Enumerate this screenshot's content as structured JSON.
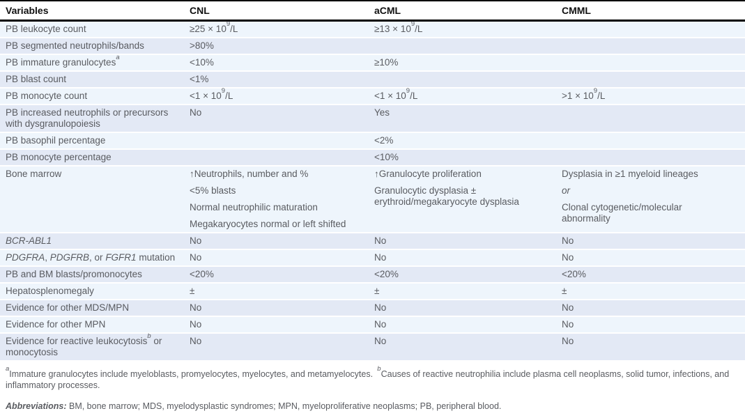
{
  "colors": {
    "row_light": "#eef5fc",
    "row_dark": "#e3e9f5",
    "rule": "#000000",
    "text": "#595b60",
    "header_text": "#111111"
  },
  "table": {
    "header": [
      {
        "label": "Variables"
      },
      {
        "label": "CNL"
      },
      {
        "label": "aCML"
      },
      {
        "label": "CMML"
      }
    ],
    "rows": [
      {
        "cells": [
          [
            "PB leukocyte count"
          ],
          [
            [
              {
                "t": "≥25 × 10"
              },
              {
                "t": "9",
                "sup": true
              },
              {
                "t": "/L"
              }
            ]
          ],
          [
            [
              {
                "t": "≥13 × 10"
              },
              {
                "t": "9",
                "sup": true
              },
              {
                "t": "/L"
              }
            ]
          ],
          []
        ]
      },
      {
        "cells": [
          [
            "PB segmented neutrophils/bands"
          ],
          [
            ">80%"
          ],
          [],
          []
        ]
      },
      {
        "cells": [
          [
            [
              {
                "t": "PB immature granulocytes"
              },
              {
                "t": "a",
                "sup": true,
                "i": true
              }
            ]
          ],
          [
            "<10%"
          ],
          [
            "≥10%"
          ],
          []
        ]
      },
      {
        "cells": [
          [
            "PB blast count"
          ],
          [
            "<1%"
          ],
          [],
          []
        ]
      },
      {
        "cells": [
          [
            "PB monocyte count"
          ],
          [
            [
              {
                "t": "<1 × 10"
              },
              {
                "t": "9",
                "sup": true
              },
              {
                "t": "/L"
              }
            ]
          ],
          [
            [
              {
                "t": "<1 × 10"
              },
              {
                "t": "9",
                "sup": true
              },
              {
                "t": "/L"
              }
            ]
          ],
          [
            [
              {
                "t": ">1 × 10"
              },
              {
                "t": "9",
                "sup": true
              },
              {
                "t": "/L"
              }
            ]
          ]
        ]
      },
      {
        "cells": [
          [
            "PB increased neutrophils or precursors with dysgranulopoiesis"
          ],
          [
            "No"
          ],
          [
            "Yes"
          ],
          []
        ]
      },
      {
        "cells": [
          [
            "PB basophil percentage"
          ],
          [],
          [
            "<2%"
          ],
          []
        ]
      },
      {
        "cells": [
          [
            "PB monocyte percentage"
          ],
          [],
          [
            "<10%"
          ],
          []
        ]
      },
      {
        "cells": [
          [
            "Bone marrow"
          ],
          [
            "↑Neutrophils, number and %",
            "<5% blasts",
            "Normal neutrophilic maturation",
            "Megakaryocytes normal or left shifted"
          ],
          [
            "↑Granulocyte proliferation",
            "Granulocytic dysplasia ± erythroid/megakaryocyte dysplasia"
          ],
          [
            "Dysplasia in ≥1 myeloid lineages",
            [
              {
                "t": "or",
                "i": true
              }
            ],
            "Clonal cytogenetic/molecular abnormality"
          ]
        ]
      },
      {
        "cells": [
          [
            [
              {
                "t": "BCR-ABL1",
                "i": true
              }
            ]
          ],
          [
            "No"
          ],
          [
            "No"
          ],
          [
            "No"
          ]
        ]
      },
      {
        "cells": [
          [
            [
              {
                "t": "PDGFRA",
                "i": true
              },
              {
                "t": ", "
              },
              {
                "t": "PDGFRB",
                "i": true
              },
              {
                "t": ", or "
              },
              {
                "t": "FGFR1",
                "i": true
              },
              {
                "t": " mutation"
              }
            ]
          ],
          [
            "No"
          ],
          [
            "No"
          ],
          [
            "No"
          ]
        ]
      },
      {
        "cells": [
          [
            "PB and BM blasts/promonocytes"
          ],
          [
            "<20%"
          ],
          [
            "<20%"
          ],
          [
            "<20%"
          ]
        ]
      },
      {
        "cells": [
          [
            "Hepatosplenomegaly"
          ],
          [
            "±"
          ],
          [
            "±"
          ],
          [
            "±"
          ]
        ]
      },
      {
        "cells": [
          [
            "Evidence for other MDS/MPN"
          ],
          [
            "No"
          ],
          [
            "No"
          ],
          [
            "No"
          ]
        ]
      },
      {
        "cells": [
          [
            "Evidence for other MPN"
          ],
          [
            "No"
          ],
          [
            "No"
          ],
          [
            "No"
          ]
        ]
      },
      {
        "cells": [
          [
            [
              {
                "t": "Evidence for reactive leukocytosis"
              },
              {
                "t": "b",
                "sup": true,
                "i": true
              },
              {
                "t": " or monocytosis"
              }
            ]
          ],
          [
            "No"
          ],
          [
            "No"
          ],
          [
            "No"
          ]
        ]
      }
    ]
  },
  "footnotes": {
    "note_segments": [
      {
        "t": "a",
        "sup": true,
        "i": true
      },
      {
        "t": "Immature granulocytes include myeloblasts, promyelocytes, myelocytes, and metamyelocytes. "
      },
      {
        "t": "b",
        "sup": true,
        "i": true
      },
      {
        "t": "Causes of reactive neutrophilia include plasma cell neoplasms, solid tumor, infections, and inflammatory processes."
      }
    ],
    "abbreviations_label": "Abbreviations:",
    "abbreviations_text": " BM, bone marrow; MDS, myelodysplastic syndromes; MPN, myeloproliferative neoplasms; PB, peripheral blood."
  }
}
